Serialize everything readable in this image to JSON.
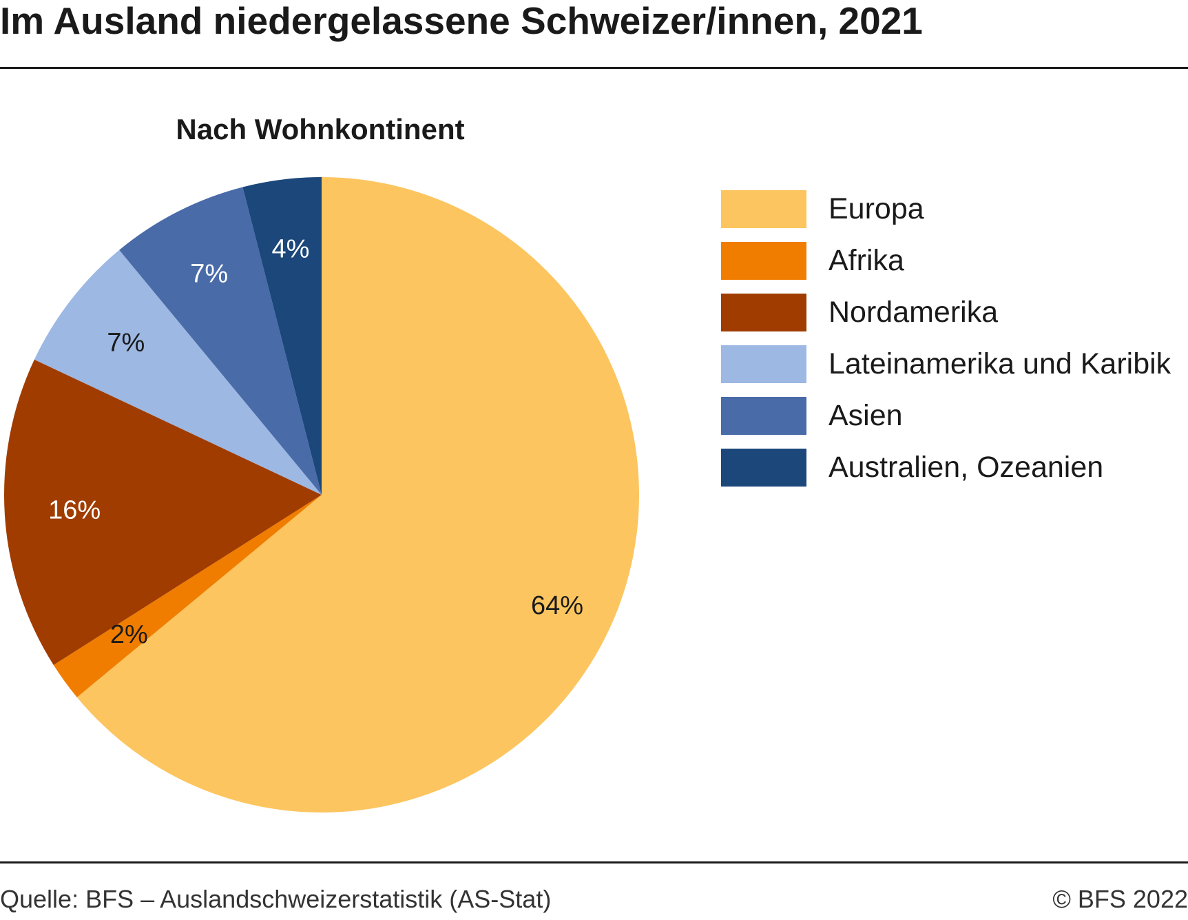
{
  "header": {
    "title": "Im Ausland niedergelassene Schweizer/innen, 2021"
  },
  "footer": {
    "source": "Quelle: BFS – Auslandschweizerstatistik (AS-Stat)",
    "copyright": "© BFS 2022"
  },
  "chart_data": {
    "type": "pie",
    "subtitle": "Nach Wohnkontinent",
    "start_angle": "12 o'clock",
    "direction": "clockwise",
    "legend_position": "right",
    "slices": [
      {
        "label": "Europa",
        "value": 64,
        "value_label": "64%",
        "color": "#FCC55F",
        "text_color": "#1a1a1a"
      },
      {
        "label": "Afrika",
        "value": 2,
        "value_label": "2%",
        "color": "#F07D00",
        "text_color": "#1a1a1a"
      },
      {
        "label": "Nordamerika",
        "value": 16,
        "value_label": "16%",
        "color": "#A03C00",
        "text_color": "#ffffff"
      },
      {
        "label": "Lateinamerika und Karibik",
        "value": 7,
        "value_label": "7%",
        "color": "#9CB8E3",
        "text_color": "#1a1a1a"
      },
      {
        "label": "Asien",
        "value": 7,
        "value_label": "7%",
        "color": "#496BA8",
        "text_color": "#ffffff"
      },
      {
        "label": "Australien, Ozeanien",
        "value": 4,
        "value_label": "4%",
        "color": "#1B477B",
        "text_color": "#ffffff"
      }
    ]
  }
}
